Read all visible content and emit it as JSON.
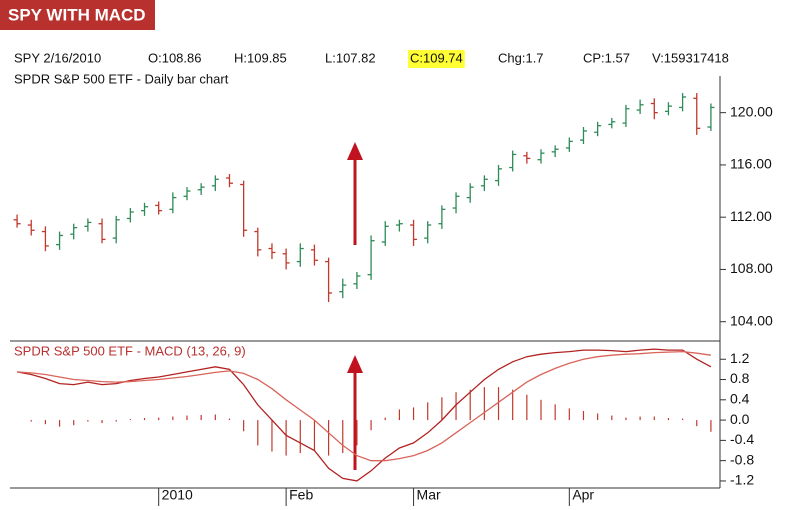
{
  "header": {
    "title": "SPY WITH MACD",
    "quote": [
      "SPY 2/16/2010",
      "O:108.86",
      "H:109.85",
      "L:107.82",
      "C:109.74",
      "Chg:1.7",
      "CP:1.57",
      "V:159317418"
    ],
    "highlight": 4
  },
  "chart_data": [
    {
      "type": "ohlc",
      "title": "SPDR S&P 500 ETF - Daily bar chart",
      "up_color": "#2e8b57",
      "down_color": "#c0392b",
      "open": [
        111.8,
        111.4,
        110.9,
        109.9,
        110.7,
        111.3,
        111.5,
        110.4,
        111.9,
        112.5,
        112.9,
        112.6,
        113.6,
        114.1,
        114.4,
        115.0,
        114.5,
        110.9,
        109.6,
        109.2,
        108.6,
        109.5,
        108.6,
        106.3,
        106.9,
        107.6,
        110.1,
        111.4,
        111.4,
        110.4,
        111.5,
        112.7,
        113.5,
        114.4,
        114.8,
        115.8,
        116.7,
        116.4,
        117.0,
        117.3,
        117.9,
        118.5,
        119.1,
        119.2,
        120.2,
        120.7,
        120.1,
        120.4,
        121.1,
        118.9
      ],
      "high": [
        112.2,
        111.8,
        111.3,
        110.9,
        111.5,
        111.9,
        111.9,
        112.1,
        112.7,
        113.1,
        113.2,
        113.9,
        114.3,
        114.6,
        115.2,
        115.3,
        114.8,
        111.2,
        110.0,
        109.6,
        110.0,
        109.9,
        108.9,
        107.3,
        107.8,
        110.6,
        111.7,
        111.8,
        111.8,
        111.7,
        112.9,
        113.9,
        114.6,
        115.2,
        116.0,
        117.1,
        117.0,
        117.2,
        117.5,
        118.1,
        118.9,
        119.3,
        119.6,
        120.6,
        121.0,
        121.1,
        120.8,
        121.5,
        121.5,
        120.7
      ],
      "low": [
        111.2,
        110.6,
        109.4,
        109.5,
        110.3,
        110.9,
        110.0,
        110.0,
        111.6,
        112.1,
        112.2,
        112.3,
        113.3,
        113.7,
        114.0,
        114.3,
        110.5,
        109.0,
        108.8,
        108.0,
        108.2,
        108.3,
        105.5,
        105.8,
        106.5,
        107.2,
        109.8,
        110.9,
        109.8,
        110.0,
        111.1,
        112.3,
        113.1,
        114.0,
        114.4,
        115.5,
        116.1,
        116.1,
        116.6,
        117.0,
        117.6,
        118.2,
        118.8,
        118.9,
        119.9,
        119.5,
        119.8,
        120.1,
        118.3,
        118.6
      ],
      "close": [
        111.5,
        111.0,
        109.8,
        110.6,
        111.2,
        111.6,
        110.3,
        111.8,
        112.4,
        112.8,
        112.5,
        113.5,
        114.0,
        114.3,
        114.9,
        114.6,
        111.0,
        109.5,
        109.3,
        108.5,
        109.6,
        108.7,
        106.2,
        106.8,
        107.5,
        110.2,
        111.3,
        111.5,
        110.3,
        111.4,
        112.6,
        113.6,
        114.3,
        114.9,
        115.7,
        116.8,
        116.5,
        116.9,
        117.2,
        117.8,
        118.6,
        119.0,
        119.3,
        120.3,
        120.6,
        120.0,
        120.5,
        121.2,
        118.8,
        120.4
      ],
      "ylim": [
        102.6,
        122.5
      ],
      "yticks": [
        {
          "value": 104,
          "label": "104.00"
        },
        {
          "value": 108,
          "label": "108.00"
        },
        {
          "value": 112,
          "label": "112.00"
        },
        {
          "value": 116,
          "label": "116.00"
        },
        {
          "value": 120,
          "label": "120.00"
        }
      ]
    },
    {
      "type": "macd",
      "title": "SPDR S&P 500 ETF - MACD (13, 26, 9)",
      "categories": [
        null,
        null,
        null,
        null,
        null,
        null,
        null,
        null,
        null,
        null,
        "2010",
        null,
        null,
        null,
        null,
        null,
        null,
        null,
        null,
        "Feb",
        null,
        null,
        null,
        null,
        null,
        null,
        null,
        null,
        "Mar",
        null,
        null,
        null,
        null,
        null,
        null,
        null,
        null,
        null,
        null,
        "Apr",
        null,
        null,
        null,
        null,
        null,
        null,
        null,
        null,
        null,
        null
      ],
      "series": [
        {
          "color": "#b22222",
          "values": [
            0.95,
            0.9,
            0.82,
            0.72,
            0.7,
            0.75,
            0.7,
            0.72,
            0.78,
            0.82,
            0.85,
            0.9,
            0.95,
            1.0,
            1.05,
            1.0,
            0.7,
            0.3,
            0.0,
            -0.3,
            -0.45,
            -0.6,
            -0.95,
            -1.15,
            -1.2,
            -1.0,
            -0.75,
            -0.55,
            -0.45,
            -0.25,
            0.0,
            0.3,
            0.55,
            0.8,
            1.0,
            1.15,
            1.25,
            1.3,
            1.33,
            1.35,
            1.38,
            1.38,
            1.37,
            1.35,
            1.38,
            1.4,
            1.38,
            1.38,
            1.2,
            1.05
          ]
        },
        {
          "color": "#d9645a",
          "values": [
            0.95,
            0.93,
            0.9,
            0.85,
            0.8,
            0.78,
            0.76,
            0.75,
            0.76,
            0.78,
            0.8,
            0.83,
            0.86,
            0.9,
            0.94,
            0.97,
            0.92,
            0.8,
            0.62,
            0.4,
            0.2,
            0.0,
            -0.25,
            -0.5,
            -0.7,
            -0.8,
            -0.8,
            -0.76,
            -0.7,
            -0.6,
            -0.45,
            -0.25,
            -0.05,
            0.15,
            0.35,
            0.55,
            0.75,
            0.9,
            1.02,
            1.12,
            1.2,
            1.25,
            1.28,
            1.3,
            1.31,
            1.33,
            1.34,
            1.35,
            1.32,
            1.28
          ]
        }
      ],
      "histogram": {
        "color": "#c0392b",
        "values": [
          0.0,
          -0.03,
          -0.08,
          -0.13,
          -0.1,
          -0.03,
          -0.06,
          -0.03,
          0.02,
          0.04,
          0.05,
          0.07,
          0.09,
          0.1,
          0.11,
          0.03,
          -0.22,
          -0.5,
          -0.62,
          -0.7,
          -0.65,
          -0.6,
          -0.7,
          -0.65,
          -0.5,
          -0.2,
          0.05,
          0.21,
          0.25,
          0.35,
          0.45,
          0.55,
          0.6,
          0.65,
          0.65,
          0.6,
          0.5,
          0.4,
          0.31,
          0.23,
          0.18,
          0.13,
          0.09,
          0.05,
          0.07,
          0.07,
          0.04,
          0.03,
          -0.12,
          -0.23
        ]
      },
      "ylim": [
        -1.28,
        1.54
      ],
      "yticks": [
        {
          "value": -1.2,
          "label": "-1.2"
        },
        {
          "value": -0.8,
          "label": "-0.8"
        },
        {
          "value": -0.4,
          "label": "-0.4"
        },
        {
          "value": 0,
          "label": "0.0"
        },
        0.4,
        0.8,
        1.2
      ]
    }
  ]
}
